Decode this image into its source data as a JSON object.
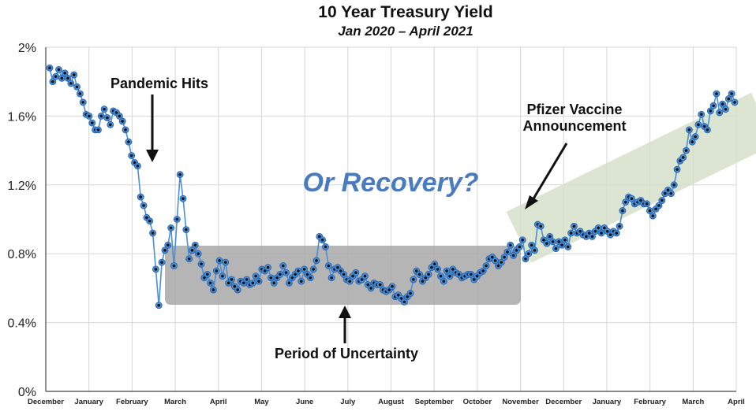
{
  "chart_data": {
    "type": "line",
    "title": "10 Year Treasury Yield",
    "subtitle": "Jan 2020 – April 2021",
    "ylim": [
      0,
      2
    ],
    "y_ticks": [
      "0%",
      "0.4%",
      "0.8%",
      "1.2%",
      "1.6%",
      "2%"
    ],
    "x_ticks": [
      "December",
      "January",
      "February",
      "March",
      "April",
      "May",
      "June",
      "July",
      "August",
      "September",
      "October",
      "November",
      "December",
      "January",
      "February",
      "March",
      "April"
    ],
    "grid": true,
    "series": [
      {
        "values": [
          1.88,
          1.8,
          1.83,
          1.87,
          1.82,
          1.85,
          1.82,
          1.79,
          1.84,
          1.77,
          1.73,
          1.68,
          1.61,
          1.6,
          1.56,
          1.52,
          1.52,
          1.6,
          1.64,
          1.59,
          1.55,
          1.63,
          1.62,
          1.6,
          1.57,
          1.52,
          1.45,
          1.37,
          1.33,
          1.31,
          1.13,
          1.08,
          1.01,
          0.99,
          0.92,
          0.71,
          0.5,
          0.75,
          0.82,
          0.85,
          0.95,
          0.73,
          1.0,
          1.26,
          1.12,
          0.94,
          0.77,
          0.82,
          0.85,
          0.8,
          0.74,
          0.66,
          0.68,
          0.63,
          0.59,
          0.7,
          0.76,
          0.67,
          0.75,
          0.63,
          0.65,
          0.61,
          0.59,
          0.64,
          0.63,
          0.65,
          0.62,
          0.63,
          0.67,
          0.64,
          0.71,
          0.7,
          0.72,
          0.66,
          0.63,
          0.66,
          0.68,
          0.73,
          0.69,
          0.63,
          0.66,
          0.68,
          0.7,
          0.64,
          0.71,
          0.68,
          0.66,
          0.71,
          0.76,
          0.9,
          0.88,
          0.84,
          0.73,
          0.66,
          0.71,
          0.72,
          0.7,
          0.68,
          0.65,
          0.64,
          0.67,
          0.69,
          0.64,
          0.65,
          0.67,
          0.62,
          0.6,
          0.63,
          0.62,
          0.62,
          0.59,
          0.58,
          0.59,
          0.61,
          0.55,
          0.56,
          0.54,
          0.52,
          0.55,
          0.57,
          0.65,
          0.7,
          0.68,
          0.64,
          0.66,
          0.68,
          0.72,
          0.74,
          0.71,
          0.67,
          0.64,
          0.7,
          0.67,
          0.71,
          0.69,
          0.68,
          0.66,
          0.67,
          0.68,
          0.68,
          0.65,
          0.67,
          0.69,
          0.7,
          0.73,
          0.77,
          0.78,
          0.76,
          0.73,
          0.75,
          0.78,
          0.81,
          0.85,
          0.79,
          0.82,
          0.84,
          0.88,
          0.77,
          0.8,
          0.85,
          0.82,
          0.97,
          0.96,
          0.88,
          0.86,
          0.9,
          0.87,
          0.83,
          0.87,
          0.85,
          0.88,
          0.84,
          0.92,
          0.96,
          0.92,
          0.93,
          0.91,
          0.9,
          0.92,
          0.9,
          0.93,
          0.95,
          0.92,
          0.95,
          0.93,
          0.91,
          0.93,
          0.92,
          0.96,
          1.05,
          1.1,
          1.13,
          1.12,
          1.09,
          1.1,
          1.11,
          1.09,
          1.09,
          1.05,
          1.02,
          1.06,
          1.08,
          1.11,
          1.15,
          1.17,
          1.15,
          1.2,
          1.29,
          1.34,
          1.36,
          1.4,
          1.52,
          1.45,
          1.48,
          1.55,
          1.61,
          1.54,
          1.52,
          1.63,
          1.66,
          1.73,
          1.62,
          1.67,
          1.64,
          1.7,
          1.73,
          1.68
        ]
      }
    ],
    "annotations": {
      "pandemic": "Pandemic Hits",
      "recovery": "Or Recovery?",
      "vaccine_line1": "Pfizer Vaccine",
      "vaccine_line2": "Announcement",
      "uncertainty": "Period of Uncertainty"
    },
    "colors": {
      "line": "#4a90d9",
      "marker_edge": "#1f5aa6",
      "marker_center": "#111111",
      "grid": "#d6d6d6",
      "uncertainty_box": "#a8a8a8",
      "recovery_band": "#d2dfc5",
      "recovery_text": "#4a7bbf"
    }
  }
}
